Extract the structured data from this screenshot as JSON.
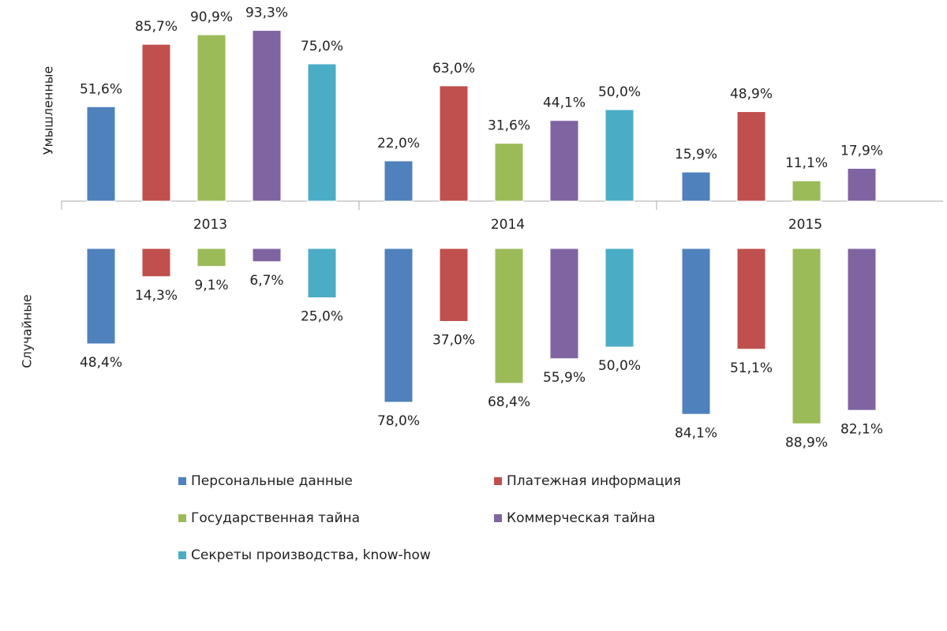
{
  "chart_data": [
    {
      "type": "bar",
      "ylabel": "Умышленные",
      "categories": [
        "2013",
        "2014",
        "2015"
      ],
      "ylim": [
        0,
        100
      ],
      "series": [
        {
          "name": "Персональные данные",
          "color": "#4f81bd",
          "values": [
            51.6,
            22.0,
            15.9
          ],
          "value_labels": [
            "51,6%",
            "22,0%",
            "15,9%"
          ]
        },
        {
          "name": "Платежная информация",
          "color": "#c0504d",
          "values": [
            85.7,
            63.0,
            48.9
          ],
          "value_labels": [
            "85,7%",
            "63,0%",
            "48,9%"
          ]
        },
        {
          "name": "Государственная тайна",
          "color": "#9bbb59",
          "values": [
            90.9,
            31.6,
            11.1
          ],
          "value_labels": [
            "90,9%",
            "31,6%",
            "11,1%"
          ]
        },
        {
          "name": "Коммерческая тайна",
          "color": "#8064a2",
          "values": [
            93.3,
            44.1,
            17.9
          ],
          "value_labels": [
            "93,3%",
            "44,1%",
            "17,9%"
          ]
        },
        {
          "name": "Секреты производства, know-how",
          "color": "#4bacc6",
          "values": [
            75.0,
            50.0,
            null
          ],
          "value_labels": [
            "75,0%",
            "50,0%",
            null
          ]
        }
      ]
    },
    {
      "type": "bar",
      "ylabel": "Случайные",
      "ylim": [
        0,
        100
      ],
      "series": [
        {
          "color": "#4f81bd",
          "values": [
            48.4,
            78.0,
            84.1
          ],
          "value_labels": [
            "48,4%",
            "78,0%",
            "84,1%"
          ]
        },
        {
          "color": "#c0504d",
          "values": [
            14.3,
            37.0,
            51.1
          ],
          "value_labels": [
            "14,3%",
            "37,0%",
            "51,1%"
          ]
        },
        {
          "color": "#9bbb59",
          "values": [
            9.1,
            68.4,
            88.9
          ],
          "value_labels": [
            "9,1%",
            "68,4%",
            "88,9%"
          ]
        },
        {
          "color": "#8064a2",
          "values": [
            6.7,
            55.9,
            82.1
          ],
          "value_labels": [
            "6,7%",
            "55,9%",
            "82,1%"
          ]
        },
        {
          "color": "#4bacc6",
          "values": [
            25.0,
            50.0,
            null
          ],
          "value_labels": [
            "25,0%",
            "50,0%",
            null
          ]
        }
      ]
    }
  ]
}
